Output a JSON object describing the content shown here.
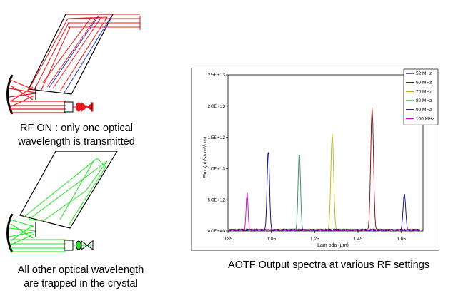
{
  "captions": {
    "rf_on": [
      "RF ON : only one optical",
      "wavelength is transmitted"
    ],
    "rf_off": [
      "All other optical wavelength",
      "are trapped in the crystal"
    ],
    "chart": "AOTF Output spectra at various RF settings"
  },
  "colors": {
    "rf_on_beam": "#e8181e",
    "rf_on_blue": "#2233cc",
    "rf_off_beam": "#22e222",
    "outline": "#000000"
  },
  "chart_data": {
    "type": "line",
    "xlabel": "Lam bda (µm)",
    "ylabel": "Flux (ph/s/cm²/nm)",
    "xlim": [
      0.85,
      1.75
    ],
    "ylim": [
      0,
      25000000000000.0
    ],
    "x_ticks": [
      0.85,
      1.05,
      1.25,
      1.45,
      1.65
    ],
    "x_tick_labels": [
      "0.85",
      "1.05",
      "1.25",
      "1.45",
      "1.65"
    ],
    "y_ticks": [
      0,
      5000000000000.0,
      10000000000000.0,
      15000000000000.0,
      20000000000000.0,
      25000000000000.0
    ],
    "y_tick_labels": [
      "0.0E+00",
      "5.0E+12",
      "1.0E+13",
      "1.5E+13",
      "2.0E+13",
      "2.5E+13"
    ],
    "legend_position": "top-right",
    "series": [
      {
        "name": "52 MHz",
        "color": "#00008b",
        "peak_x": 1.664,
        "peak_y": 6000000000000.0,
        "width": 0.006
      },
      {
        "name": "60 MHz",
        "color": "#8b0000",
        "peak_x": 1.515,
        "peak_y": 19800000000000.0,
        "width": 0.0065
      },
      {
        "name": "70 MHz",
        "color": "#b5b515",
        "peak_x": 1.331,
        "peak_y": 15600000000000.0,
        "width": 0.0065
      },
      {
        "name": "80 MHz",
        "color": "#2e8b57",
        "peak_x": 1.179,
        "peak_y": 12800000000000.0,
        "width": 0.0055
      },
      {
        "name": "90 MHz",
        "color": "#000080",
        "peak_x": 1.036,
        "peak_y": 13100000000000.0,
        "width": 0.0055
      },
      {
        "name": "100 MHz",
        "color": "#cc00cc",
        "peak_x": 0.938,
        "peak_y": 6200000000000.0,
        "width": 0.0045
      }
    ]
  }
}
